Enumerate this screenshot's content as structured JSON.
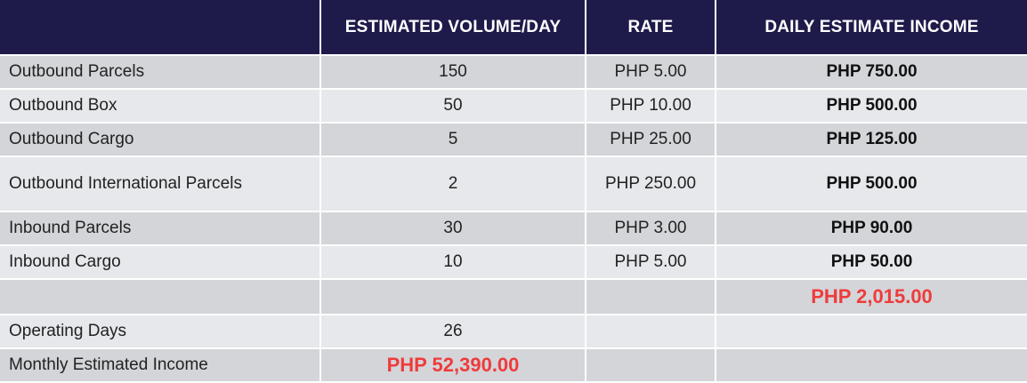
{
  "headers": {
    "col1": "",
    "col2": "ESTIMATED VOLUME/DAY",
    "col3": "RATE",
    "col4": "DAILY ESTIMATE INCOME"
  },
  "rows": [
    {
      "label": "Outbound Parcels",
      "volume": "150",
      "rate": "PHP 5.00",
      "income": "PHP 750.00"
    },
    {
      "label": "Outbound Box",
      "volume": "50",
      "rate": "PHP 10.00",
      "income": "PHP 500.00"
    },
    {
      "label": "Outbound Cargo",
      "volume": "5",
      "rate": "PHP 25.00",
      "income": "PHP 125.00"
    },
    {
      "label": "Outbound International Parcels",
      "volume": "2",
      "rate": "PHP 250.00",
      "income": "PHP 500.00"
    },
    {
      "label": "Inbound Parcels",
      "volume": "30",
      "rate": "PHP 3.00",
      "income": "PHP 90.00"
    },
    {
      "label": "Inbound Cargo",
      "volume": "10",
      "rate": "PHP 5.00",
      "income": "PHP 50.00"
    }
  ],
  "daily_total": "PHP 2,015.00",
  "operating_days": {
    "label": "Operating Days",
    "value": "26"
  },
  "monthly": {
    "label": "Monthly Estimated Income",
    "value": "PHP 52,390.00"
  },
  "colors": {
    "header_bg": "#1e1b4b",
    "highlight": "#ef3b3b",
    "row_dark": "#d3d5d9",
    "row_light": "#e6e8eb"
  }
}
